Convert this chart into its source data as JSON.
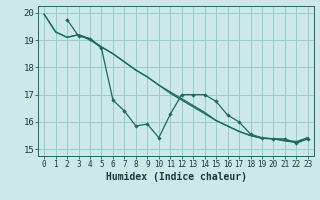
{
  "xlabel": "Humidex (Indice chaleur)",
  "bg_color": "#cce8e8",
  "grid_color": "#99cccc",
  "line_color": "#1a6b5a",
  "spine_color": "#1a6b5a",
  "xlim": [
    -0.5,
    23.5
  ],
  "ylim": [
    14.75,
    20.25
  ],
  "yticks": [
    15,
    16,
    17,
    18,
    19,
    20
  ],
  "xticks": [
    0,
    1,
    2,
    3,
    4,
    5,
    6,
    7,
    8,
    9,
    10,
    11,
    12,
    13,
    14,
    15,
    16,
    17,
    18,
    19,
    20,
    21,
    22,
    23
  ],
  "line1_x": [
    0,
    1,
    2,
    3,
    4,
    5,
    6,
    7,
    8,
    9,
    10,
    11,
    12,
    13,
    14,
    15,
    16,
    17,
    18,
    19,
    20,
    21,
    22,
    23
  ],
  "line1_y": [
    19.95,
    19.3,
    19.1,
    19.2,
    19.0,
    18.75,
    18.5,
    18.2,
    17.9,
    17.65,
    17.35,
    17.05,
    16.8,
    16.55,
    16.3,
    16.05,
    15.85,
    15.65,
    15.5,
    15.4,
    15.38,
    15.3,
    15.25,
    15.42
  ],
  "line2_x": [
    2,
    3,
    4,
    5,
    6,
    7,
    8,
    9,
    10,
    11,
    12,
    13,
    14,
    15,
    16,
    17,
    18,
    19,
    20,
    21,
    22,
    23
  ],
  "line2_y": [
    19.75,
    19.15,
    19.05,
    18.7,
    16.8,
    16.4,
    15.85,
    15.92,
    15.42,
    16.28,
    17.0,
    17.0,
    17.0,
    16.75,
    16.25,
    16.0,
    15.55,
    15.42,
    15.38,
    15.38,
    15.22,
    15.38
  ],
  "line3_x": [
    0,
    1,
    2,
    3,
    4,
    5,
    6,
    7,
    8,
    9,
    10,
    11,
    12,
    13,
    14,
    15,
    16,
    17,
    18,
    19,
    20,
    21,
    22,
    23
  ],
  "line3_y": [
    19.95,
    19.3,
    19.1,
    19.2,
    19.05,
    18.75,
    18.5,
    18.2,
    17.9,
    17.65,
    17.35,
    17.1,
    16.85,
    16.6,
    16.35,
    16.05,
    15.85,
    15.65,
    15.5,
    15.4,
    15.38,
    15.32,
    15.28,
    15.42
  ],
  "xlabel_fontsize": 7,
  "tick_fontsize": 5.5,
  "ytick_fontsize": 6.5,
  "lw": 0.9,
  "marker_size": 2.2
}
